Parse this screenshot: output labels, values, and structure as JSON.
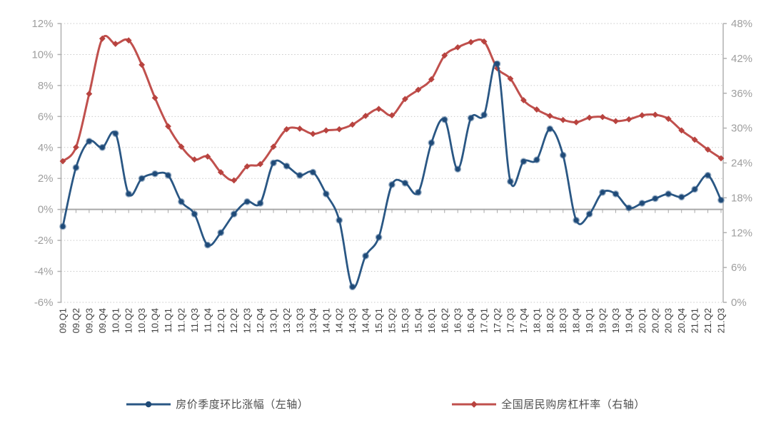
{
  "chart_data": {
    "type": "line",
    "title": "",
    "categories": [
      "09.Q1",
      "09.Q2",
      "09.Q3",
      "09.Q4",
      "10.Q1",
      "10.Q2",
      "10.Q3",
      "10.Q4",
      "11.Q1",
      "11.Q2",
      "11.Q3",
      "11.Q4",
      "12.Q1",
      "12.Q2",
      "12.Q3",
      "12.Q4",
      "13.Q1",
      "13.Q2",
      "13.Q3",
      "13.Q4",
      "14.Q1",
      "14.Q2",
      "14.Q3",
      "14.Q4",
      "15.Q1",
      "15.Q2",
      "15.Q3",
      "15.Q4",
      "16.Q1",
      "16.Q2",
      "16.Q3",
      "16.Q4",
      "17.Q1",
      "17.Q2",
      "17.Q3",
      "17.Q4",
      "18.Q1",
      "18.Q2",
      "18.Q3",
      "18.Q4",
      "19.Q1",
      "19.Q2",
      "19.Q3",
      "19.Q4",
      "20.Q1",
      "20.Q2",
      "20.Q3",
      "20.Q4",
      "21.Q1",
      "21.Q2",
      "21.Q3"
    ],
    "series": [
      {
        "name": "房价季度环比涨幅（左轴）",
        "axis": "left",
        "marker": "circle",
        "color": "#2a5784",
        "marker_color": "#1f4a77",
        "values": [
          -1.1,
          2.7,
          4.4,
          4.0,
          4.9,
          1.0,
          2.0,
          2.3,
          2.2,
          0.5,
          -0.3,
          -2.3,
          -1.5,
          -0.3,
          0.5,
          0.4,
          3.0,
          2.8,
          2.2,
          2.4,
          1.0,
          -0.7,
          -5.0,
          -3.0,
          -1.8,
          1.6,
          1.7,
          1.1,
          4.3,
          5.8,
          2.6,
          5.9,
          6.1,
          9.4,
          1.8,
          3.1,
          3.2,
          5.2,
          3.5,
          -0.7,
          -0.3,
          1.1,
          1.0,
          0.1,
          0.4,
          0.7,
          1.0,
          0.8,
          1.3,
          2.2,
          0.6
        ]
      },
      {
        "name": "全国居民购房杠杆率（右轴）",
        "axis": "right",
        "marker": "diamond",
        "color": "#c0504d",
        "marker_color": "#b8433f",
        "values": [
          24.3,
          26.7,
          35.9,
          45.4,
          44.5,
          45.1,
          40.9,
          35.2,
          30.3,
          26.8,
          24.6,
          25.1,
          22.4,
          21.0,
          23.4,
          23.8,
          26.8,
          29.8,
          29.9,
          29.0,
          29.6,
          29.8,
          30.6,
          32.1,
          33.3,
          32.2,
          35.0,
          36.6,
          38.4,
          42.5,
          43.9,
          44.8,
          44.9,
          40.3,
          38.5,
          34.8,
          33.2,
          32.1,
          31.4,
          31.0,
          31.8,
          31.9,
          31.2,
          31.5,
          32.2,
          32.3,
          31.6,
          29.6,
          28.0,
          26.3,
          24.8
        ]
      }
    ],
    "left_axis": {
      "min": -6,
      "max": 12,
      "step": 2,
      "labels": [
        "12%",
        "10%",
        "8%",
        "6%",
        "4%",
        "2%",
        "0%",
        "-2%",
        "-4%",
        "-6%"
      ]
    },
    "right_axis": {
      "min": 0,
      "max": 48,
      "step": 6,
      "labels": [
        "48%",
        "42%",
        "36%",
        "30%",
        "24%",
        "18%",
        "12%",
        "6%",
        "0%"
      ]
    },
    "grid": true,
    "legend_position": "bottom"
  },
  "colors": {
    "background": "#ffffff",
    "grid_line": "#c9c9c9",
    "zero_line": "#a8a8a8",
    "axis_line": "#b0b0b0",
    "y_tick_label": "#9e9e9e",
    "x_tick_label": "#3f3f3f",
    "legend_text": "#4d4d4d"
  }
}
